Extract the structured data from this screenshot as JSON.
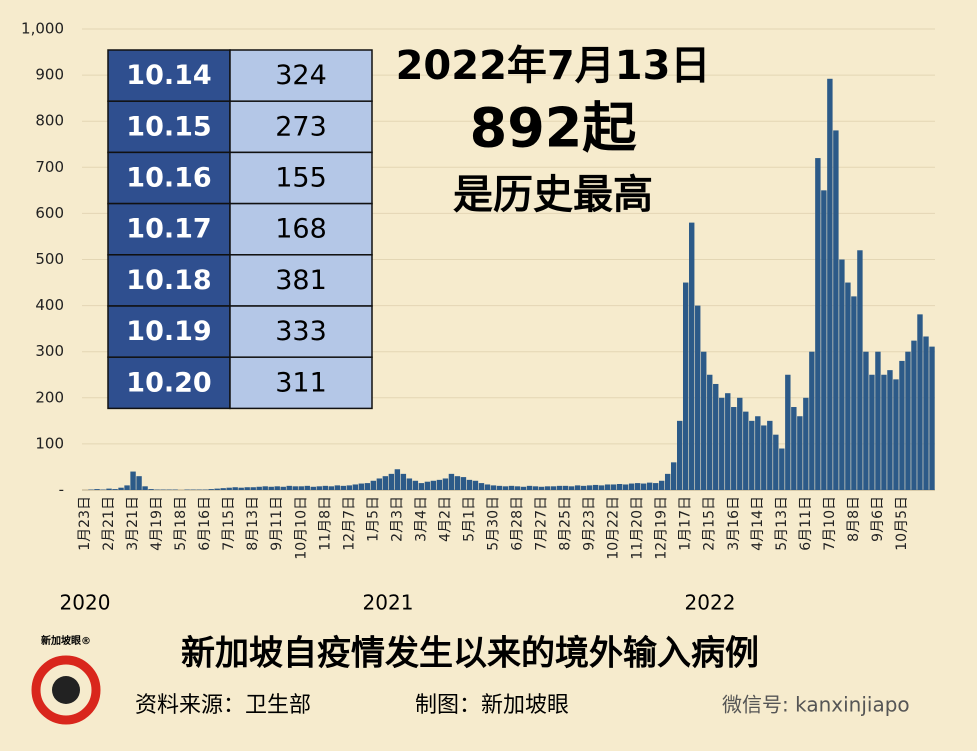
{
  "chart_data": {
    "type": "bar",
    "color": "#2c5a88",
    "categories": [
      "1月23日",
      null,
      null,
      null,
      "2月21日",
      null,
      null,
      null,
      "3月21日",
      null,
      null,
      null,
      "4月19日",
      null,
      null,
      null,
      "5月18日",
      null,
      null,
      null,
      "6月16日",
      null,
      null,
      null,
      "7月15日",
      null,
      null,
      null,
      "8月13日",
      null,
      null,
      null,
      "9月11日",
      null,
      null,
      null,
      "10月10日",
      null,
      null,
      null,
      "11月8日",
      null,
      null,
      null,
      "12月7日",
      null,
      null,
      null,
      "1月5日",
      null,
      null,
      null,
      "2月3日",
      null,
      null,
      null,
      "3月4日",
      null,
      null,
      null,
      "4月2日",
      null,
      null,
      null,
      "5月1日",
      null,
      null,
      null,
      "5月30日",
      null,
      null,
      null,
      "6月28日",
      null,
      null,
      null,
      "7月27日",
      null,
      null,
      null,
      "8月25日",
      null,
      null,
      null,
      "9月23日",
      null,
      null,
      null,
      "10月22日",
      null,
      null,
      null,
      "11月20日",
      null,
      null,
      null,
      "12月19日",
      null,
      null,
      null,
      "1月17日",
      null,
      null,
      null,
      "2月15日",
      null,
      null,
      null,
      "3月16日",
      null,
      null,
      null,
      "4月14日",
      null,
      null,
      null,
      "5月13日",
      null,
      null,
      null,
      "6月11日",
      null,
      null,
      null,
      "7月10日",
      null,
      null,
      null,
      "8月8日",
      null,
      null,
      null,
      "9月6日",
      null,
      null,
      null,
      "10月5日",
      null,
      null,
      null,
      null,
      null
    ],
    "values": [
      0,
      1,
      2,
      1,
      3,
      2,
      5,
      10,
      40,
      30,
      8,
      2,
      1,
      1,
      1,
      1,
      0,
      1,
      1,
      1,
      1,
      2,
      3,
      4,
      5,
      6,
      5,
      6,
      6,
      7,
      8,
      7,
      8,
      7,
      9,
      8,
      8,
      9,
      7,
      8,
      9,
      8,
      10,
      9,
      10,
      12,
      14,
      15,
      20,
      25,
      30,
      35,
      45,
      35,
      25,
      20,
      15,
      18,
      20,
      22,
      25,
      35,
      30,
      28,
      22,
      20,
      15,
      12,
      10,
      9,
      8,
      9,
      8,
      7,
      9,
      8,
      7,
      8,
      8,
      9,
      9,
      8,
      10,
      9,
      10,
      11,
      10,
      12,
      12,
      13,
      12,
      14,
      15,
      14,
      16,
      15,
      20,
      35,
      60,
      150,
      450,
      580,
      400,
      300,
      250,
      230,
      200,
      210,
      180,
      200,
      170,
      150,
      160,
      140,
      150,
      120,
      90,
      250,
      180,
      160,
      200,
      300,
      720,
      650,
      892,
      780,
      500,
      450,
      420,
      520,
      300,
      250,
      300,
      250,
      260,
      240,
      280,
      300,
      324,
      381,
      333,
      311
    ],
    "ylim": [
      0,
      1000
    ],
    "yticks": [
      {
        "value": 0,
        "label": "-"
      },
      100,
      200,
      300,
      400,
      500,
      600,
      700,
      800,
      900,
      {
        "value": 1000,
        "label": "1,000"
      }
    ],
    "grid": true,
    "years": [
      "2020",
      "2021",
      "2022"
    ],
    "title": "新加坡自疫情发生以来的境外输入病例"
  },
  "annotation": {
    "date": "2022年7月13日",
    "count": "892起",
    "note": "是历史最高"
  },
  "table": {
    "rows": [
      [
        "10.14",
        324
      ],
      [
        "10.15",
        273
      ],
      [
        "10.16",
        155
      ],
      [
        "10.17",
        168
      ],
      [
        "10.18",
        381
      ],
      [
        "10.19",
        333
      ],
      [
        "10.20",
        311
      ]
    ]
  },
  "footer": {
    "source": "资料来源：卫生部",
    "maker": "制图：新加坡眼",
    "wechat": "微信号: kanxinjiapo",
    "logo": "新加坡眼®"
  }
}
